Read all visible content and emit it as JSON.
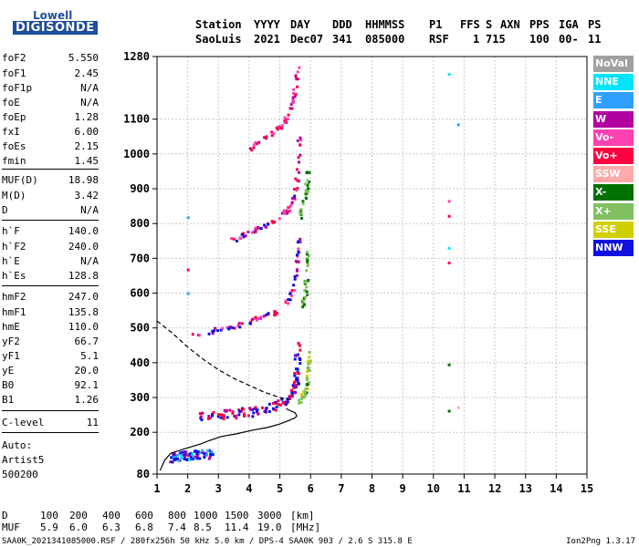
{
  "logo": {
    "line1": "Lowell",
    "line2": "DIGISONDE"
  },
  "header": {
    "labels": [
      "Station",
      "YYYY",
      "DAY",
      "DDD",
      "HHMMSS",
      "P1",
      "FFS",
      "S",
      "AXN",
      "PPS",
      "IGA",
      "PS"
    ],
    "values": [
      "SaoLuis",
      "2021",
      "Dec07",
      "341",
      "085000",
      "RSF",
      "1",
      "715",
      "100",
      "00-",
      "11"
    ]
  },
  "parameters": [
    {
      "name": "foF2",
      "value": "5.550"
    },
    {
      "name": "foF1",
      "value": "2.45"
    },
    {
      "name": "foF1p",
      "value": "N/A"
    },
    {
      "name": "foE",
      "value": "N/A"
    },
    {
      "name": "foEp",
      "value": "1.28"
    },
    {
      "name": "fxI",
      "value": "6.00"
    },
    {
      "name": "foEs",
      "value": "2.15"
    },
    {
      "name": "fmin",
      "value": "1.45"
    },
    {
      "name": "MUF(D)",
      "value": "18.98"
    },
    {
      "name": "M(D)",
      "value": "3.42"
    },
    {
      "name": "D",
      "value": "N/A"
    },
    {
      "name": "h`F",
      "value": "140.0"
    },
    {
      "name": "h`F2",
      "value": "240.0"
    },
    {
      "name": "h`E",
      "value": "N/A"
    },
    {
      "name": "h`Es",
      "value": "128.8"
    },
    {
      "name": "hmF2",
      "value": "247.0"
    },
    {
      "name": "hmF1",
      "value": "135.8"
    },
    {
      "name": "hmE",
      "value": "110.0"
    },
    {
      "name": "yF2",
      "value": "66.7"
    },
    {
      "name": "yF1",
      "value": "5.1"
    },
    {
      "name": "yE",
      "value": "20.0"
    },
    {
      "name": "B0",
      "value": "92.1"
    },
    {
      "name": "B1",
      "value": "1.26"
    },
    {
      "name": "C-level",
      "value": "11"
    }
  ],
  "autoscaling": {
    "line1": "Auto:",
    "line2": "Artist5",
    "line3": "500200"
  },
  "legend": [
    {
      "label": "NoVal",
      "color": "#a0a0a0"
    },
    {
      "label": "NNE",
      "color": "#00e5ff"
    },
    {
      "label": "E",
      "color": "#2fa0ff"
    },
    {
      "label": "W",
      "color": "#b000a0"
    },
    {
      "label": "Vo-",
      "color": "#ff40b0"
    },
    {
      "label": "Vo+",
      "color": "#ff0040"
    },
    {
      "label": "SSW",
      "color": "#ffaaaa"
    },
    {
      "label": "X-",
      "color": "#007000"
    },
    {
      "label": "X+",
      "color": "#80c060"
    },
    {
      "label": "SSE",
      "color": "#d0d000"
    },
    {
      "label": "NNW",
      "color": "#1010e0"
    }
  ],
  "mufTable": {
    "distLabel": "D",
    "distances": [
      "100",
      "200",
      "400",
      "600",
      "800",
      "1000",
      "1500",
      "3000"
    ],
    "distUnit": "[km]",
    "mufLabel": "MUF",
    "mufs": [
      "5.9",
      "6.0",
      "6.3",
      "6.8",
      "7.4",
      "8.5",
      "11.4",
      "19.0"
    ],
    "mufUnit": "[MHz]"
  },
  "footer": {
    "left": "SAA0K_2021341085000.RSF / 280fx256h 50 kHz 5.0 km / DPS-4 SAA0K 903 / 2.6 S 315.8 E",
    "right": "Ion2Png 1.3.17"
  },
  "chart_data": {
    "type": "scatter",
    "xlim": [
      1,
      15
    ],
    "ylim": [
      80,
      1280
    ],
    "xticks": [
      1,
      2,
      3,
      4,
      5,
      6,
      7,
      8,
      9,
      10,
      11,
      12,
      13,
      14,
      15
    ],
    "yticks": [
      80,
      200,
      300,
      400,
      500,
      600,
      700,
      800,
      900,
      1000,
      1100,
      1280
    ],
    "grid": true,
    "profile": {
      "x": [
        1.1,
        1.25,
        1.45,
        1.8,
        2.1,
        2.4,
        2.7,
        3.1,
        3.6,
        4.1,
        4.6,
        5.0,
        5.3,
        5.5,
        5.55,
        5.5,
        5.2
      ],
      "y": [
        90,
        120,
        140,
        150,
        158,
        166,
        176,
        188,
        196,
        206,
        214,
        224,
        234,
        242,
        247,
        256,
        268
      ]
    },
    "topside": {
      "x": [
        1.0,
        1.5,
        2.0,
        2.5,
        3.0,
        3.5,
        4.0,
        4.5,
        5.0,
        5.3
      ],
      "y": [
        520,
        485,
        445,
        410,
        380,
        355,
        335,
        315,
        300,
        294
      ]
    },
    "traces": [
      {
        "name": "Es",
        "x": [
          1.45,
          1.6,
          1.8,
          2.0,
          2.2,
          2.5,
          2.8
        ],
        "y": [
          130,
          132,
          134,
          136,
          138,
          140,
          141
        ]
      },
      {
        "name": "F2 O",
        "x": [
          2.4,
          3.0,
          3.5,
          4.0,
          4.5,
          5.0,
          5.3,
          5.45,
          5.53,
          5.55
        ],
        "y": [
          248,
          252,
          256,
          262,
          270,
          284,
          300,
          330,
          380,
          460
        ]
      },
      {
        "name": "F2 X",
        "x": [
          5.6,
          5.75,
          5.85,
          5.9,
          5.95
        ],
        "y": [
          290,
          310,
          340,
          380,
          430
        ]
      },
      {
        "name": "2F O",
        "x": [
          2.1,
          3.0,
          3.6,
          4.2,
          4.8,
          5.2,
          5.45,
          5.55,
          5.6
        ],
        "y": [
          480,
          500,
          510,
          528,
          545,
          580,
          620,
          700,
          760
        ]
      },
      {
        "name": "2F X",
        "x": [
          5.7,
          5.8,
          5.85,
          5.9
        ],
        "y": [
          560,
          600,
          660,
          720
        ]
      },
      {
        "name": "3F O",
        "x": [
          3.3,
          3.8,
          4.3,
          4.8,
          5.2,
          5.45,
          5.55,
          5.6
        ],
        "y": [
          750,
          770,
          790,
          810,
          840,
          880,
          960,
          1050
        ]
      },
      {
        "name": "3F X",
        "x": [
          5.6,
          5.75,
          5.85,
          5.9
        ],
        "y": [
          820,
          860,
          910,
          960
        ]
      },
      {
        "name": "4F O",
        "x": [
          4.0,
          4.5,
          5.0,
          5.3,
          5.45,
          5.55
        ],
        "y": [
          1020,
          1050,
          1080,
          1120,
          1180,
          1260
        ]
      }
    ],
    "isolated_points": [
      {
        "x": 10.5,
        "y": 1230,
        "color": "#00e5ff"
      },
      {
        "x": 10.8,
        "y": 1085,
        "color": "#2fa0ff"
      },
      {
        "x": 10.5,
        "y": 865,
        "color": "#ff40b0"
      },
      {
        "x": 10.5,
        "y": 822,
        "color": "#ff0040"
      },
      {
        "x": 10.5,
        "y": 730,
        "color": "#00e5ff"
      },
      {
        "x": 10.5,
        "y": 688,
        "color": "#ff0040"
      },
      {
        "x": 10.5,
        "y": 395,
        "color": "#007000"
      },
      {
        "x": 10.5,
        "y": 262,
        "color": "#007000"
      },
      {
        "x": 10.8,
        "y": 272,
        "color": "#ffaaaa"
      },
      {
        "x": 2.0,
        "y": 818,
        "color": "#2fa0ff"
      },
      {
        "x": 2.0,
        "y": 668,
        "color": "#ff0040"
      },
      {
        "x": 2.0,
        "y": 600,
        "color": "#2fa0ff"
      }
    ]
  }
}
